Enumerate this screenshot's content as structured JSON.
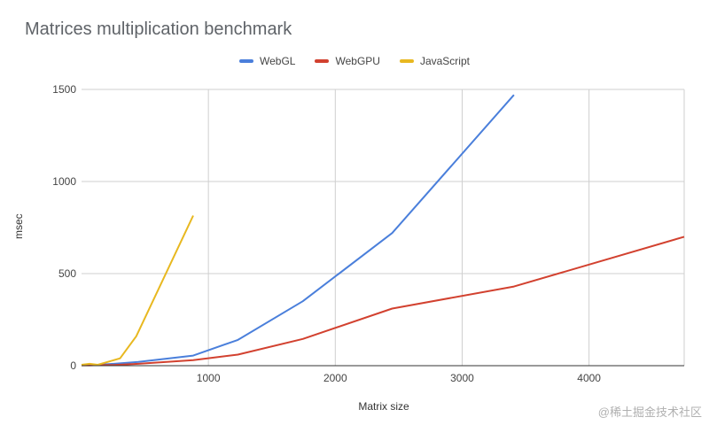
{
  "colors": {
    "webgl": "#4a7fdb",
    "webgpu": "#d2412f",
    "javascript": "#e8b820",
    "grid": "#cfcfcf",
    "axis": "#333333"
  },
  "watermark": "@稀土掘金技术社区",
  "chart_data": {
    "type": "line",
    "title": "Matrices multiplication benchmark",
    "xlabel": "Matrix size",
    "ylabel": "msec",
    "xlim": [
      0,
      4750
    ],
    "ylim": [
      0,
      1500
    ],
    "xticks": [
      1000,
      2000,
      3000,
      4000
    ],
    "yticks": [
      0,
      500,
      1000,
      1500
    ],
    "grid": true,
    "legend": "top",
    "series": [
      {
        "name": "WebGL",
        "color": "#4a7fdb",
        "x": [
          0,
          64,
          128,
          256,
          448,
          880,
          1232,
          1744,
          2448,
          3408
        ],
        "y": [
          5,
          5,
          5,
          10,
          20,
          55,
          140,
          350,
          720,
          1470
        ]
      },
      {
        "name": "WebGPU",
        "color": "#d2412f",
        "x": [
          0,
          64,
          128,
          256,
          448,
          880,
          1232,
          1744,
          2448,
          3408,
          4750
        ],
        "y": [
          2,
          2,
          3,
          4,
          10,
          30,
          60,
          145,
          310,
          430,
          700
        ]
      },
      {
        "name": "JavaScript",
        "color": "#e8b820",
        "x": [
          0,
          64,
          128,
          304,
          432,
          880
        ],
        "y": [
          5,
          10,
          5,
          40,
          160,
          815
        ]
      }
    ]
  }
}
